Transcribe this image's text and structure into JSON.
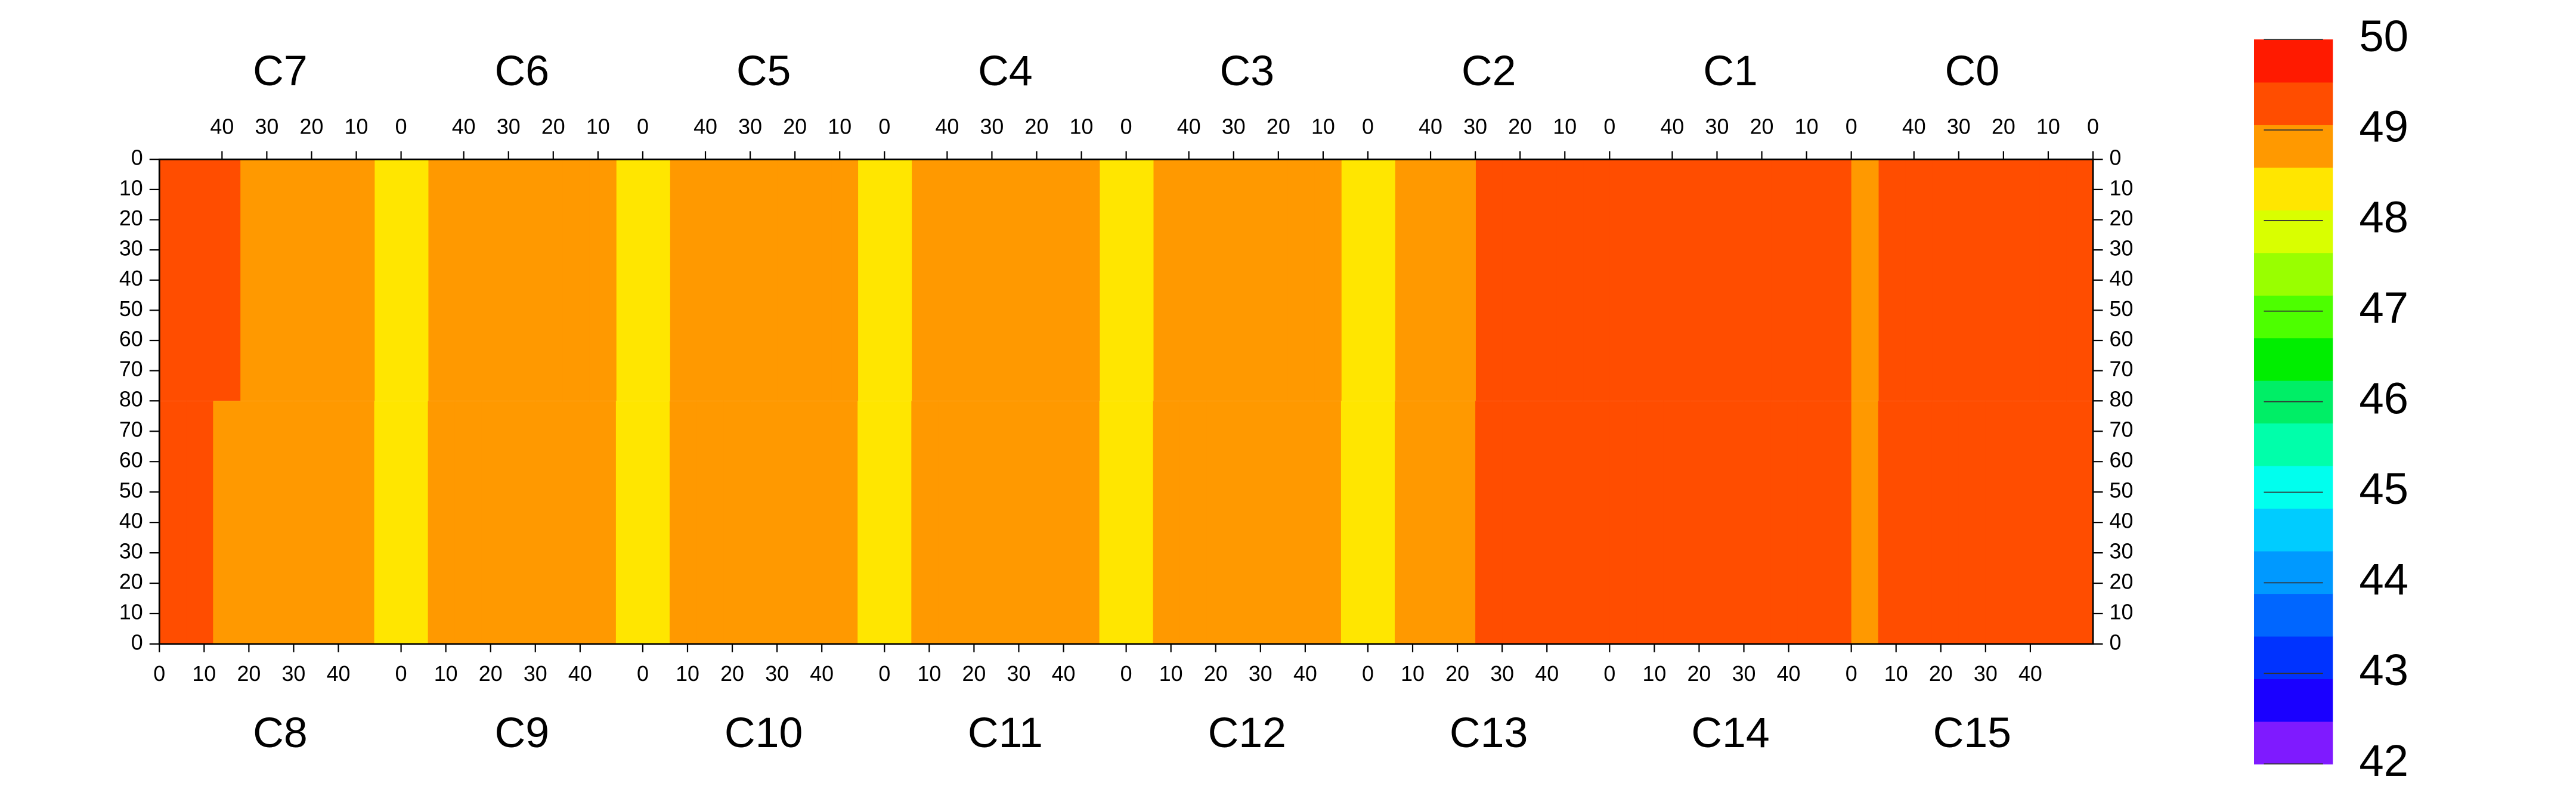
{
  "chart_data": [
    {
      "type": "heatmap",
      "position": "top",
      "x_inverted": true,
      "y_inverted": true,
      "xlim": [
        0,
        54
      ],
      "xticks": [
        0,
        10,
        20,
        30,
        40
      ],
      "ylim": [
        0,
        80
      ],
      "yticks": [
        0,
        10,
        20,
        30,
        40,
        50,
        60,
        70,
        80
      ],
      "zlim": [
        42,
        50
      ],
      "zticks": [
        42,
        43,
        44,
        45,
        46,
        47,
        48,
        49,
        50
      ],
      "colors": [
        "#7f1aff",
        "#1a00ff",
        "#0033ff",
        "#0066ff",
        "#0099ff",
        "#00ccff",
        "#00ffee",
        "#00ffaa",
        "#00ee66",
        "#00ee00",
        "#4dff00",
        "#99ff00",
        "#d9ff00",
        "#ffe600",
        "#ff9900",
        "#ff4d00",
        "#ff1a00"
      ],
      "panels": [
        {
          "name": "C7",
          "values": [
            48.6,
            49.4,
            49.4,
            49.4,
            49.4,
            49.4,
            49.6,
            49.6,
            49.7
          ]
        },
        {
          "name": "C6",
          "values": [
            48.6,
            49.4,
            49.4,
            49.4,
            49.4,
            49.4,
            49.4,
            49.4,
            48.9
          ]
        },
        {
          "name": "C5",
          "values": [
            48.6,
            49.4,
            49.4,
            49.4,
            49.4,
            49.4,
            49.4,
            49.4,
            48.9
          ]
        },
        {
          "name": "C4",
          "values": [
            48.6,
            49.4,
            49.4,
            49.4,
            49.4,
            49.4,
            49.4,
            49.4,
            48.9
          ]
        },
        {
          "name": "C3",
          "values": [
            48.6,
            49.4,
            49.4,
            49.4,
            49.4,
            49.4,
            49.4,
            49.4,
            48.9
          ]
        },
        {
          "name": "C2",
          "values": [
            49.9,
            49.9,
            49.9,
            49.9,
            49.7,
            49.4,
            49.4,
            49.4,
            48.9
          ]
        },
        {
          "name": "C1",
          "values": [
            49.9,
            49.9,
            49.9,
            49.9,
            49.9,
            49.9,
            49.9,
            49.9,
            49.9
          ]
        },
        {
          "name": "C0",
          "values": [
            49.6,
            49.6,
            49.6,
            49.6,
            49.6,
            49.6,
            49.6,
            49.6,
            49.4
          ]
        }
      ]
    },
    {
      "type": "heatmap",
      "position": "bottom",
      "x_inverted": false,
      "y_inverted": false,
      "xlim": [
        0,
        54
      ],
      "xticks": [
        0,
        10,
        20,
        30,
        40
      ],
      "ylim": [
        0,
        80
      ],
      "yticks": [
        0,
        10,
        20,
        30,
        40,
        50,
        60,
        70
      ],
      "panels": [
        {
          "name": "C8",
          "values": [
            49.7,
            49.6,
            49.4,
            49.4,
            49.4,
            49.4,
            49.4,
            49.4,
            48.6
          ]
        },
        {
          "name": "C9",
          "values": [
            48.9,
            49.4,
            49.4,
            49.4,
            49.4,
            49.4,
            49.4,
            49.4,
            48.6
          ]
        },
        {
          "name": "C10",
          "values": [
            48.9,
            49.4,
            49.4,
            49.4,
            49.4,
            49.4,
            49.4,
            49.4,
            48.6
          ]
        },
        {
          "name": "C11",
          "values": [
            48.9,
            49.4,
            49.4,
            49.4,
            49.4,
            49.4,
            49.4,
            49.4,
            48.6
          ]
        },
        {
          "name": "C12",
          "values": [
            48.9,
            49.4,
            49.4,
            49.4,
            49.4,
            49.4,
            49.4,
            49.4,
            48.6
          ]
        },
        {
          "name": "C13",
          "values": [
            48.9,
            49.4,
            49.4,
            49.4,
            49.7,
            49.9,
            49.9,
            49.9,
            49.9
          ]
        },
        {
          "name": "C14",
          "values": [
            49.9,
            49.9,
            49.9,
            49.9,
            49.9,
            49.9,
            49.9,
            49.9,
            49.9
          ]
        },
        {
          "name": "C15",
          "values": [
            49.4,
            49.6,
            49.6,
            49.6,
            49.6,
            49.6,
            49.6,
            49.6,
            49.6
          ]
        }
      ]
    }
  ]
}
